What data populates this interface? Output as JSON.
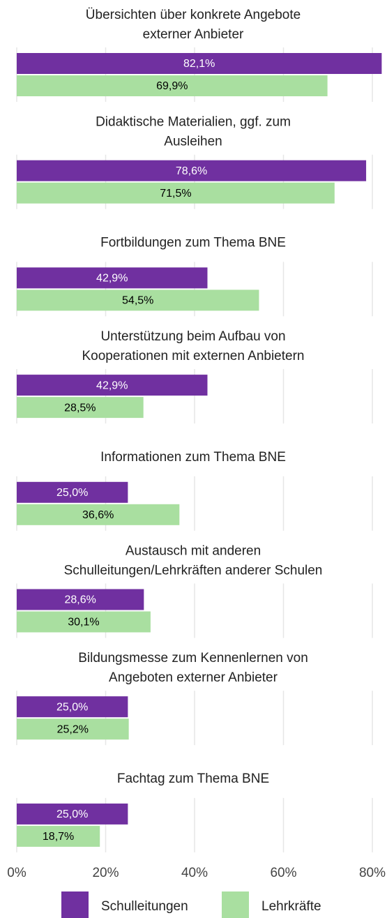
{
  "chart_data": {
    "type": "bar",
    "orientation": "horizontal",
    "categories": [
      [
        "Übersichten über konkrete Angebote",
        "externer Anbieter"
      ],
      [
        "Didaktische Materialien, ggf. zum",
        "Ausleihen"
      ],
      [
        "Fortbildungen zum Thema BNE"
      ],
      [
        "Unterstützung beim Aufbau von",
        "Kooperationen mit externen Anbietern"
      ],
      [
        "Informationen zum Thema BNE"
      ],
      [
        "Austausch mit anderen",
        "Schulleitungen/Lehrkräften anderer Schulen"
      ],
      [
        "Bildungsmesse zum Kennenlernen von",
        "Angeboten externer Anbieter"
      ],
      [
        "Fachtag zum Thema BNE"
      ]
    ],
    "series": [
      {
        "name": "Schulleitungen",
        "color": "#7030a0",
        "label_color": "#ffffff",
        "values": [
          82.1,
          78.6,
          42.9,
          42.9,
          25.0,
          28.6,
          25.0,
          25.0
        ],
        "value_labels": [
          "82,1%",
          "78,6%",
          "42,9%",
          "42,9%",
          "25,0%",
          "28,6%",
          "25,0%",
          "25,0%"
        ]
      },
      {
        "name": "Lehrkräfte",
        "color": "#a9dfa0",
        "label_color": "#000000",
        "values": [
          69.9,
          71.5,
          54.5,
          28.5,
          36.6,
          30.1,
          25.2,
          18.7
        ],
        "value_labels": [
          "69,9%",
          "71,5%",
          "54,5%",
          "28,5%",
          "36,6%",
          "30,1%",
          "25,2%",
          "18,7%"
        ]
      }
    ],
    "xlim": [
      0,
      80
    ],
    "xticks": [
      {
        "value": 0,
        "label": "0%"
      },
      {
        "value": 20,
        "label": "20%"
      },
      {
        "value": 40,
        "label": "40%"
      },
      {
        "value": 60,
        "label": "60%"
      },
      {
        "value": 80,
        "label": "80%"
      }
    ],
    "grid": true,
    "legend": "bottom"
  }
}
